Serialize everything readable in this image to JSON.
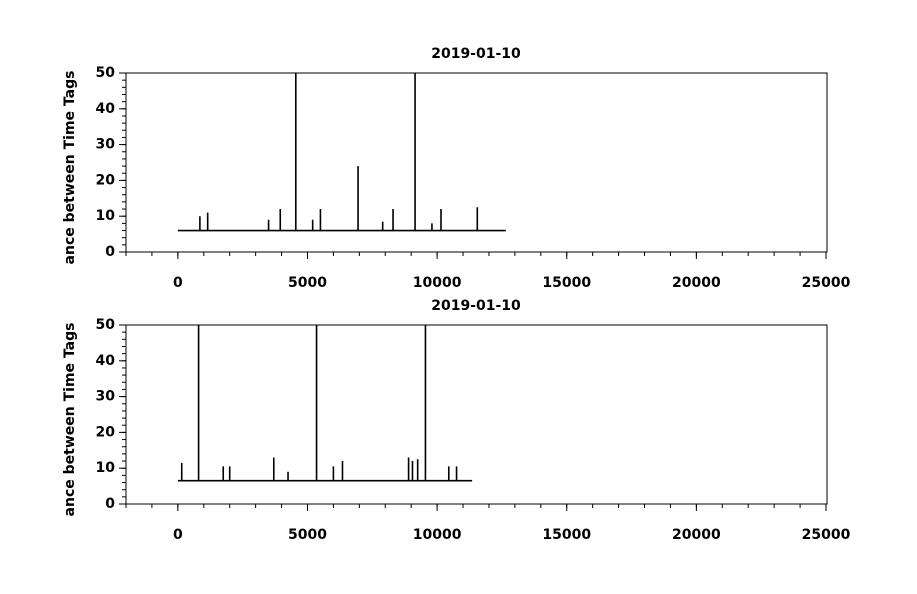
{
  "chart_data": [
    {
      "type": "line",
      "title": "2019-01-10",
      "y_label": "ance between Time Tags",
      "xlim": [
        -2000,
        25000
      ],
      "xticks": [
        0,
        5000,
        10000,
        15000,
        20000,
        25000
      ],
      "ylim": [
        0,
        50
      ],
      "yticks": [
        0,
        10,
        20,
        30,
        40,
        50
      ],
      "x": [
        0,
        850,
        850,
        850,
        1150,
        1150,
        1150,
        3500,
        3500,
        3500,
        3950,
        3950,
        3950,
        4550,
        4550,
        4550,
        5200,
        5200,
        5200,
        5500,
        5500,
        5500,
        6950,
        6950,
        6950,
        7900,
        7900,
        7900,
        8300,
        8300,
        8300,
        9150,
        9150,
        9150,
        9800,
        9800,
        9800,
        10150,
        10150,
        10150,
        11550,
        11550,
        11550,
        12650
      ],
      "series": [
        {
          "color": "#000000",
          "values": [
            6,
            6,
            10,
            6,
            6,
            11,
            6,
            6,
            9,
            6,
            6,
            12,
            6,
            6,
            50,
            6,
            6,
            9,
            6,
            6,
            12,
            6,
            6,
            24,
            6,
            6,
            8.5,
            6,
            6,
            12,
            6,
            6,
            50,
            6,
            6,
            8,
            6,
            6,
            12,
            6,
            6,
            12.5,
            6,
            6
          ]
        }
      ]
    },
    {
      "type": "line",
      "title": "2019-01-10",
      "y_label": "ance between Time Tags",
      "xlim": [
        -2000,
        25000
      ],
      "xticks": [
        0,
        5000,
        10000,
        15000,
        20000,
        25000
      ],
      "ylim": [
        0,
        50
      ],
      "yticks": [
        0,
        10,
        20,
        30,
        40,
        50
      ],
      "x": [
        0,
        150,
        150,
        150,
        800,
        800,
        800,
        1750,
        1750,
        1750,
        2000,
        2000,
        2000,
        3700,
        3700,
        3700,
        4250,
        4250,
        4250,
        5350,
        5350,
        5350,
        6000,
        6000,
        6000,
        6350,
        6350,
        6350,
        8900,
        8900,
        8900,
        9050,
        9050,
        9050,
        9250,
        9250,
        9250,
        9550,
        9550,
        9550,
        10450,
        10450,
        10450,
        10750,
        10750,
        10750,
        11350
      ],
      "series": [
        {
          "color": "#000000",
          "values": [
            6.5,
            6.5,
            11.5,
            6.5,
            6.5,
            50,
            6.5,
            6.5,
            10.5,
            6.5,
            6.5,
            10.5,
            6.5,
            6.5,
            13,
            6.5,
            6.5,
            9,
            6.5,
            6.5,
            50,
            6.5,
            6.5,
            10.5,
            6.5,
            6.5,
            12,
            6.5,
            6.5,
            13,
            6.5,
            6.5,
            12,
            6.5,
            6.5,
            12.5,
            6.5,
            6.5,
            50,
            6.5,
            6.5,
            10.5,
            6.5,
            6.5,
            10.5,
            6.5,
            6.5
          ]
        }
      ]
    }
  ]
}
